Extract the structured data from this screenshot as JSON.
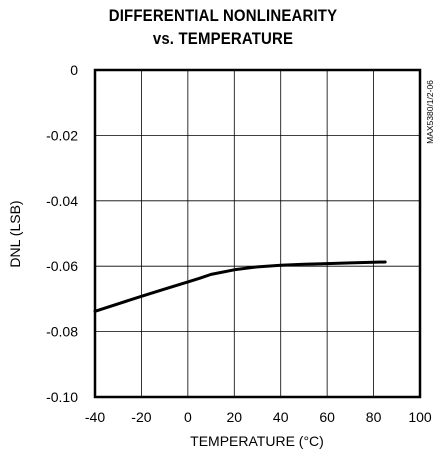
{
  "title_line1": "DIFFERENTIAL NONLINEARITY",
  "title_line2": "vs. TEMPERATURE",
  "chart_data": {
    "type": "line",
    "title": "DIFFERENTIAL NONLINEARITY vs. TEMPERATURE",
    "xlabel": "TEMPERATURE (°C)",
    "ylabel": "DNL (LSB)",
    "annotation": "MAX5380/1/2-06",
    "xlim": [
      -40,
      100
    ],
    "ylim": [
      -0.1,
      0
    ],
    "xticks": [
      -40,
      -20,
      0,
      20,
      40,
      60,
      80,
      100
    ],
    "yticks": [
      0,
      -0.02,
      -0.04,
      -0.06,
      -0.08,
      -0.1
    ],
    "xtick_labels": [
      "-40",
      "-20",
      "0",
      "20",
      "40",
      "60",
      "80",
      "100"
    ],
    "ytick_labels": [
      "0",
      "-0.02",
      "-0.04",
      "-0.06",
      "-0.08",
      "-0.10"
    ],
    "grid": true,
    "legend": "none",
    "line_color": "#000000",
    "series": [
      {
        "x": [
          -40,
          -30,
          -20,
          -10,
          0,
          5,
          10,
          20,
          30,
          40,
          50,
          60,
          70,
          80,
          85
        ],
        "y": [
          -0.0738,
          -0.0715,
          -0.0692,
          -0.067,
          -0.0648,
          -0.0637,
          -0.0625,
          -0.0611,
          -0.0602,
          -0.0597,
          -0.0594,
          -0.0592,
          -0.059,
          -0.0588,
          -0.0587
        ]
      }
    ]
  }
}
